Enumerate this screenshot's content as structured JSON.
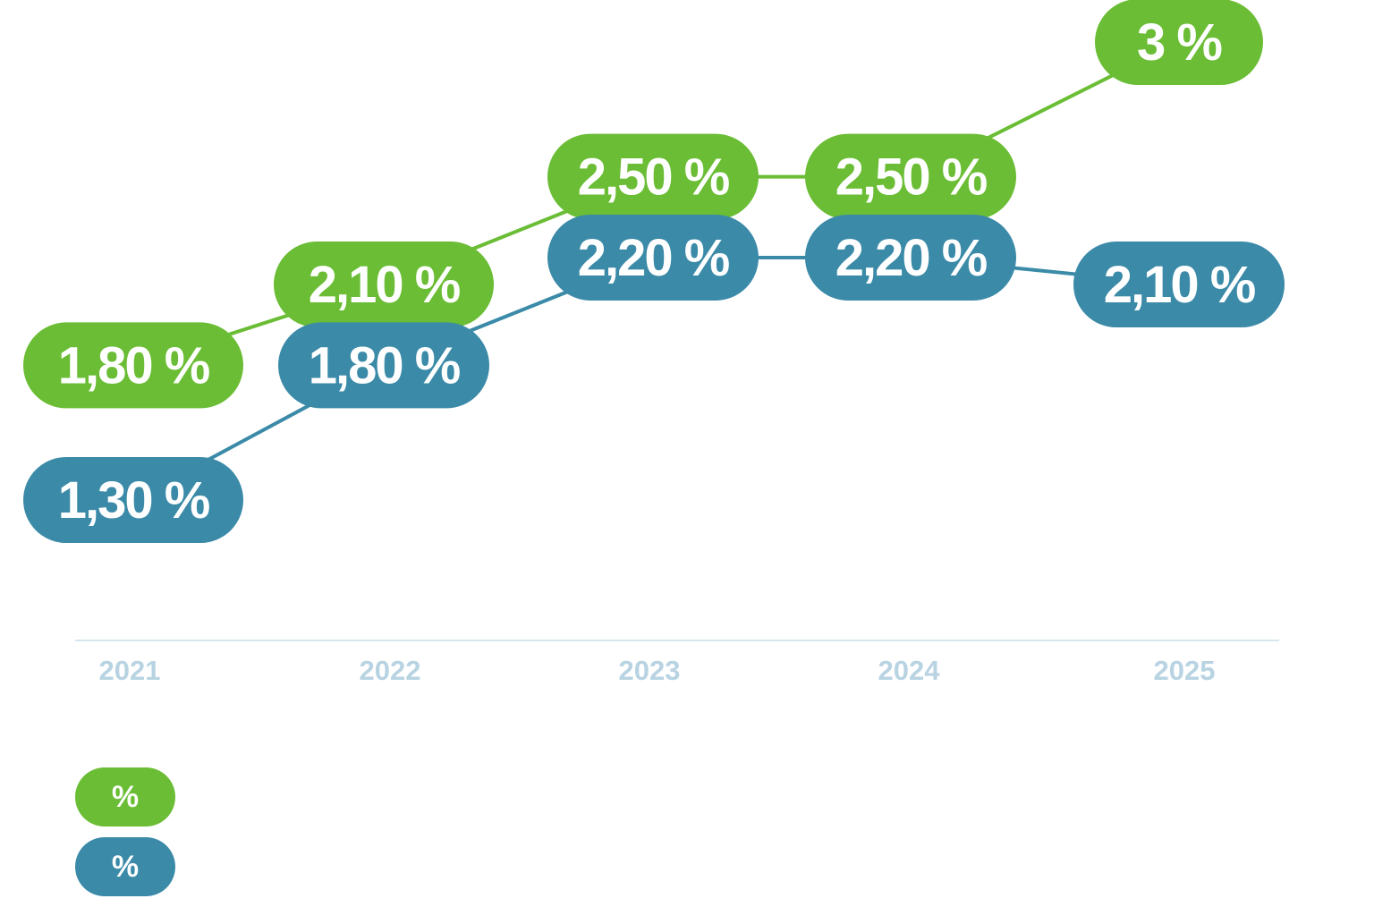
{
  "chart_data": {
    "type": "line",
    "categories": [
      "2021",
      "2022",
      "2023",
      "2024",
      "2025"
    ],
    "series": [
      {
        "values": [
          1.8,
          2.1,
          2.5,
          2.5,
          3.0
        ],
        "labels": [
          "1,80 %",
          "2,10 %",
          "2,50 %",
          "2,50 %",
          "3 %"
        ],
        "color": "#6abd34",
        "note": ""
      },
      {
        "values": [
          1.3,
          1.8,
          2.2,
          2.2,
          2.1
        ],
        "labels": [
          "1,30 %",
          "1,80 %",
          "2,20 %",
          "2,20 %",
          "2,10 %"
        ],
        "color": "#3a8aa8",
        "note": ""
      }
    ],
    "ylim": [
      1.3,
      3.0
    ],
    "grid": false,
    "legend_position": "bottom-left",
    "axis_color": "#d6e6ef",
    "tick_color": "#b8d3e2"
  },
  "legend": {
    "items": [
      {
        "symbol": "%",
        "label": "",
        "color": "#6abd34"
      },
      {
        "symbol": "%",
        "label": "",
        "color": "#3a8aa8"
      }
    ]
  }
}
